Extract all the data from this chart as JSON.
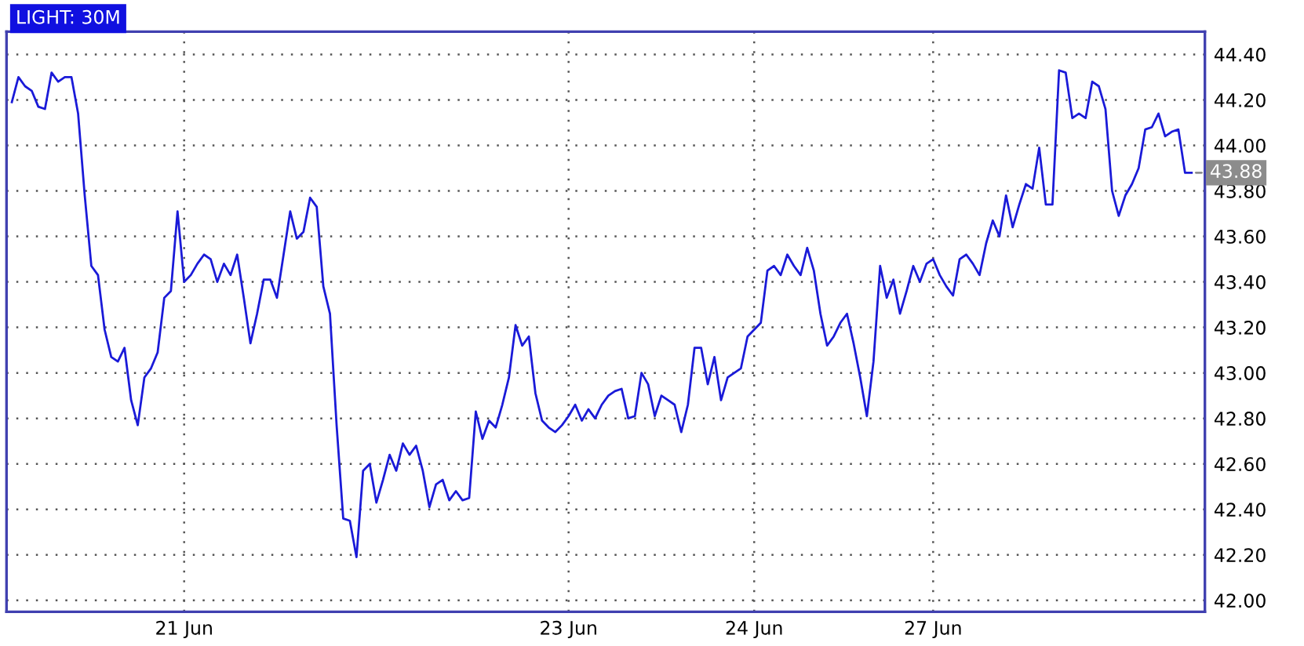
{
  "chart_data": {
    "type": "line",
    "title": "LIGHT: 30M",
    "categories": [
      null,
      null,
      null,
      null,
      null,
      null,
      null,
      null,
      null,
      null,
      null,
      null,
      null,
      null,
      null,
      null,
      null,
      null,
      null,
      null,
      null,
      null,
      null,
      null,
      null,
      null,
      "21 Jun",
      null,
      null,
      null,
      null,
      null,
      null,
      null,
      null,
      null,
      null,
      null,
      null,
      null,
      null,
      null,
      null,
      null,
      null,
      null,
      null,
      null,
      null,
      null,
      null,
      null,
      null,
      null,
      null,
      null,
      null,
      null,
      null,
      null,
      null,
      null,
      null,
      null,
      null,
      null,
      null,
      null,
      null,
      null,
      null,
      null,
      null,
      null,
      null,
      null,
      null,
      null,
      null,
      null,
      null,
      null,
      null,
      null,
      "23 Jun",
      null,
      null,
      null,
      null,
      null,
      null,
      null,
      null,
      null,
      null,
      null,
      null,
      null,
      null,
      null,
      null,
      null,
      null,
      null,
      null,
      null,
      null,
      null,
      null,
      null,
      null,
      null,
      "24 Jun",
      null,
      null,
      null,
      null,
      null,
      null,
      null,
      null,
      null,
      null,
      null,
      null,
      null,
      null,
      null,
      null,
      null,
      null,
      null,
      null,
      null,
      null,
      null,
      null,
      null,
      null,
      "27 Jun",
      null,
      null,
      null,
      null,
      null,
      null,
      null,
      null,
      null,
      null,
      null,
      null,
      null,
      null,
      null,
      null,
      null,
      null,
      null,
      null,
      null,
      null,
      null,
      null,
      null,
      null,
      null,
      null,
      null,
      null,
      null,
      null,
      null,
      null,
      null,
      null,
      null,
      null,
      null
    ],
    "series": [
      {
        "color": "#1a1ad8",
        "values": [
          44.19,
          44.3,
          44.26,
          44.24,
          44.17,
          44.16,
          44.32,
          44.28,
          44.3,
          44.3,
          44.14,
          43.78,
          43.47,
          43.43,
          43.19,
          43.07,
          43.05,
          43.11,
          42.88,
          42.77,
          42.98,
          43.02,
          43.09,
          43.33,
          43.36,
          43.71,
          43.4,
          43.43,
          43.48,
          43.52,
          43.5,
          43.4,
          43.48,
          43.43,
          43.52,
          43.33,
          43.13,
          43.26,
          43.41,
          43.41,
          43.33,
          43.52,
          43.71,
          43.59,
          43.62,
          43.77,
          43.73,
          43.38,
          43.26,
          42.77,
          42.36,
          42.35,
          42.19,
          42.57,
          42.6,
          42.43,
          42.53,
          42.64,
          42.57,
          42.69,
          42.64,
          42.68,
          42.57,
          42.41,
          42.51,
          42.53,
          42.44,
          42.48,
          42.44,
          42.45,
          42.83,
          42.71,
          42.79,
          42.76,
          42.86,
          42.98,
          43.21,
          43.12,
          43.16,
          42.91,
          42.79,
          42.76,
          42.74,
          42.77,
          42.81,
          42.86,
          42.79,
          42.84,
          42.8,
          42.86,
          42.9,
          42.92,
          42.93,
          42.8,
          42.81,
          43.0,
          42.95,
          42.81,
          42.9,
          42.88,
          42.86,
          42.74,
          42.86,
          43.11,
          43.11,
          42.95,
          43.07,
          42.88,
          42.98,
          43.0,
          43.02,
          43.16,
          43.19,
          43.22,
          43.45,
          43.47,
          43.43,
          43.52,
          43.47,
          43.43,
          43.55,
          43.45,
          43.26,
          43.12,
          43.16,
          43.22,
          43.26,
          43.13,
          42.98,
          42.81,
          43.05,
          43.47,
          43.33,
          43.41,
          43.26,
          43.36,
          43.47,
          43.4,
          43.48,
          43.5,
          43.43,
          43.38,
          43.34,
          43.5,
          43.52,
          43.48,
          43.43,
          43.57,
          43.67,
          43.6,
          43.78,
          43.64,
          43.74,
          43.83,
          43.81,
          43.99,
          43.74,
          43.74,
          44.33,
          44.32,
          44.12,
          44.14,
          44.12,
          44.28,
          44.26,
          44.16,
          43.8,
          43.69,
          43.78,
          43.83,
          43.9,
          44.07,
          44.08,
          44.14,
          44.04,
          44.06,
          44.07,
          43.88,
          43.88
        ],
        "value_labels": [
          null,
          null,
          null,
          null,
          null,
          null,
          null,
          null,
          null,
          null,
          null,
          null,
          null,
          null,
          null,
          null,
          null,
          null,
          null,
          null,
          null,
          null,
          null,
          null,
          null,
          null,
          null,
          null,
          null,
          null,
          null,
          null,
          null,
          null,
          null,
          null,
          null,
          null,
          null,
          null,
          null,
          null,
          null,
          null,
          null,
          null,
          null,
          null,
          null,
          null,
          null,
          null,
          null,
          null,
          null,
          null,
          null,
          null,
          null,
          null,
          null,
          null,
          null,
          null,
          null,
          null,
          null,
          null,
          null,
          null,
          null,
          null,
          null,
          null,
          null,
          null,
          null,
          null,
          null,
          null,
          null,
          null,
          null,
          null,
          null,
          null,
          null,
          null,
          null,
          null,
          null,
          null,
          null,
          null,
          null,
          null,
          null,
          null,
          null,
          null,
          null,
          null,
          null,
          null,
          null,
          null,
          null,
          null,
          null,
          null,
          null,
          null,
          null,
          null,
          null,
          null,
          null,
          null,
          null,
          null,
          null,
          null,
          null,
          null,
          null,
          null,
          null,
          null,
          null,
          null,
          null,
          null,
          null,
          null,
          null,
          null,
          null,
          null,
          null,
          null,
          null,
          null,
          null,
          null,
          null,
          null,
          null,
          null,
          null,
          null,
          null,
          null,
          null,
          null,
          null,
          null,
          null,
          null,
          null,
          null,
          null,
          null,
          null,
          null,
          null,
          null,
          null,
          null,
          null,
          null,
          null,
          null,
          null,
          null,
          null,
          null,
          null,
          null,
          "43.88"
        ]
      }
    ],
    "ylim": [
      41.95,
      44.5
    ],
    "yticks": [
      {
        "value": 42.0,
        "label": "42.00"
      },
      {
        "value": 42.2,
        "label": "42.20"
      },
      {
        "value": 42.4,
        "label": "42.40"
      },
      {
        "value": 42.6,
        "label": "42.60"
      },
      {
        "value": 42.8,
        "label": "42.80"
      },
      {
        "value": 43.0,
        "label": "43.00"
      },
      {
        "value": 43.2,
        "label": "43.20"
      },
      {
        "value": 43.4,
        "label": "43.40"
      },
      {
        "value": 43.6,
        "label": "43.60"
      },
      {
        "value": 43.8,
        "label": "43.80"
      },
      {
        "value": 44.0,
        "label": "44.00"
      },
      {
        "value": 44.2,
        "label": "44.20"
      },
      {
        "value": 44.4,
        "label": "44.40"
      }
    ],
    "grid": true,
    "line_style": "solid",
    "marker": "none"
  }
}
